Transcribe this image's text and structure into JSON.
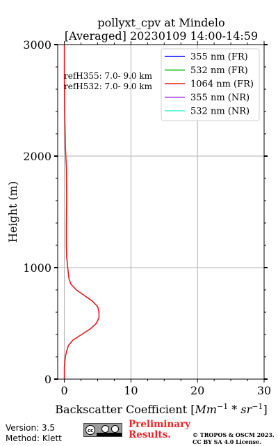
{
  "chart_data": {
    "type": "line",
    "title": "pollyxt_cpv at Mindelo",
    "subtitle": "[Averaged] 20230109 14:00-14:59",
    "xlabel_main": "Backscatter Coefficient [",
    "xlabel_math": "Mm",
    "xlabel_exp1": "−1",
    "xlabel_mid": " * ",
    "xlabel_math2": "sr",
    "xlabel_exp2": "−1",
    "xlabel_end": "]",
    "ylabel": "Height (m)",
    "xlim": [
      -1,
      30
    ],
    "ylim": [
      0,
      3000
    ],
    "xticks": [
      0,
      10,
      20,
      30
    ],
    "yticks": [
      0,
      1000,
      2000,
      3000
    ],
    "grid": true,
    "legend_position": "top-right",
    "series": [
      {
        "name": "355 nm (FR)",
        "color": "#0000ff",
        "x": [],
        "y": []
      },
      {
        "name": "532 nm (FR)",
        "color": "#00b400",
        "x": [],
        "y": []
      },
      {
        "name": "1064 nm (FR)",
        "color": "#e31a1c",
        "x": [
          0.0,
          0.0,
          0.0,
          0.05,
          0.15,
          0.35,
          0.6,
          1.3,
          2.6,
          3.9,
          4.8,
          5.2,
          5.2,
          5.0,
          4.2,
          3.0,
          1.8,
          1.0,
          0.7,
          0.5,
          0.35,
          0.3,
          0.3,
          0.35,
          0.3,
          0.15,
          0.05,
          0.0,
          0.0
        ],
        "y": [
          0,
          60,
          100,
          150,
          200,
          250,
          300,
          350,
          400,
          450,
          500,
          550,
          600,
          650,
          700,
          750,
          800,
          850,
          900,
          1000,
          1100,
          1200,
          1400,
          1600,
          1900,
          2100,
          2400,
          2700,
          3000
        ]
      },
      {
        "name": "355 nm (NR)",
        "color": "#a040e0",
        "x": [],
        "y": []
      },
      {
        "name": "532 nm (NR)",
        "color": "#40f0d0",
        "x": [],
        "y": []
      }
    ],
    "annotations": [
      "refH355:  7.0- 9.0 km",
      "refH532:  7.0- 9.0 km"
    ]
  },
  "footer": {
    "version": "Version: 3.5",
    "method": "Method: Klett",
    "license_badge": "cc",
    "preliminary_line1": "Preliminary",
    "preliminary_line2": "Results.",
    "copyright_line1": "© TROPOS & OSCM 2023.",
    "copyright_line2": "CC BY SA 4.0 License."
  }
}
